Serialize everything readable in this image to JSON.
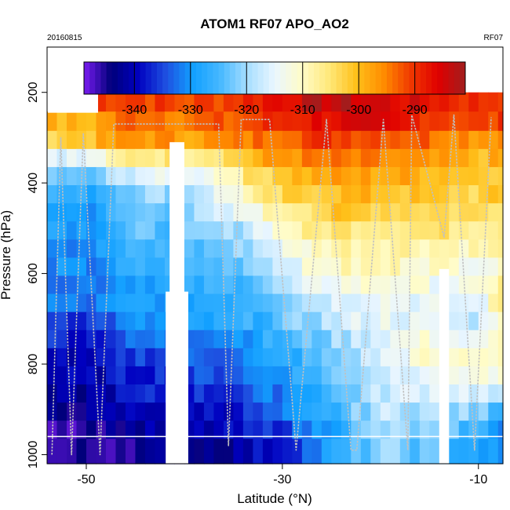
{
  "chart_data": {
    "type": "heatmap",
    "title": "ATOM1 RF07 APO_AO2",
    "subtitle_left": "20160815",
    "subtitle_right": "RF07",
    "xlabel": "Latitude (°N)",
    "ylabel": "Pressure (hPa)",
    "xlim": [
      -54,
      -7.5
    ],
    "ylim": [
      1020,
      100
    ],
    "x_ticks": [
      -50,
      -30,
      -10
    ],
    "x_tick_labels": [
      "-50",
      "-30",
      "-10"
    ],
    "y_ticks": [
      200,
      400,
      600,
      800,
      1000
    ],
    "y_tick_labels": [
      "200",
      "400",
      "600",
      "800",
      "1000"
    ],
    "y_scale": "linear, reversed",
    "colorbar": {
      "range": [
        -349,
        -281
      ],
      "ticks": [
        -340,
        -330,
        -320,
        -310,
        -300,
        -290
      ],
      "tick_labels": [
        "-340",
        "-330",
        "-320",
        "-310",
        "-300",
        "-290"
      ],
      "placement": "top, inside plot",
      "colors": [
        "#7a1cf0",
        "#00007a",
        "#0000c0",
        "#1e4fe0",
        "#12a0ff",
        "#46b8ff",
        "#a7deff",
        "#eaf6ff",
        "#fffcc8",
        "#ffe87a",
        "#ffc01a",
        "#ff8c00",
        "#f03800",
        "#e00000",
        "#a01e1e"
      ]
    },
    "pressure_levels": [
      220,
      265,
      305,
      345,
      385,
      425,
      465,
      505,
      545,
      585,
      625,
      665,
      705,
      745,
      785,
      825,
      865,
      905,
      945,
      985
    ],
    "latitude_knots": [
      -54,
      -50,
      -45,
      -40,
      -35,
      -30,
      -25,
      -20,
      -15,
      -10,
      -7.5
    ],
    "value_grid": [
      [
        null,
        null,
        -290,
        -292,
        -290,
        -286,
        -283,
        -285,
        -287,
        -290,
        -289
      ],
      [
        -300,
        -300,
        -292,
        -294,
        -293,
        -289,
        -286,
        -287,
        -289,
        -292,
        -291
      ],
      [
        -302,
        -301,
        -296,
        -297,
        -296,
        -292,
        -290,
        -291,
        -293,
        -296,
        -295
      ],
      [
        -314,
        -316,
        -305,
        -306,
        -303,
        -296,
        -295,
        -296,
        -298,
        -300,
        -299
      ],
      [
        -322,
        -325,
        -315,
        -316,
        -308,
        -300,
        -298,
        -298,
        -299,
        -301,
        -300
      ],
      [
        -326,
        -328,
        -320,
        -320,
        -312,
        -304,
        -300,
        -300,
        -302,
        -303,
        -302
      ],
      [
        -328,
        -330,
        -323,
        -322,
        -316,
        -307,
        -302,
        -302,
        -303,
        -304,
        -303
      ],
      [
        -327,
        -329,
        -324,
        -324,
        -320,
        -310,
        -305,
        -305,
        -305,
        -306,
        -305
      ],
      [
        -329,
        -331,
        -326,
        -325,
        -322,
        -314,
        -308,
        -307,
        -308,
        -309,
        -308
      ],
      [
        -330,
        -332,
        -327,
        -326,
        -323,
        -316,
        -310,
        -309,
        -310,
        -312,
        -312
      ],
      [
        -330,
        -332,
        -328,
        -328,
        -325,
        -320,
        -313,
        -311,
        -313,
        -314,
        -305
      ],
      [
        -331,
        -333,
        -329,
        -328,
        -326,
        -321,
        -316,
        -313,
        -315,
        -316,
        -306
      ],
      [
        -334,
        -336,
        -331,
        -330,
        -328,
        -324,
        -318,
        -314,
        -316,
        -318,
        -308
      ],
      [
        -336,
        -338,
        -333,
        -331,
        -330,
        -326,
        -321,
        -315,
        -312,
        -316,
        -310
      ],
      [
        -338,
        -342,
        -335,
        -334,
        -332,
        -328,
        -323,
        -316,
        -311,
        -310,
        -309
      ],
      [
        -340,
        -341,
        -337,
        -336,
        -333,
        -329,
        -323,
        -317,
        -313,
        -312,
        -313
      ],
      [
        -343,
        -342,
        -338,
        -337,
        -336,
        -331,
        -325,
        -318,
        -315,
        -316,
        -320
      ],
      [
        -344,
        -343,
        -340,
        -339,
        -338,
        -333,
        -327,
        -318,
        -319,
        -322,
        -325
      ],
      [
        -346,
        -345,
        -342,
        -341,
        -340,
        -335,
        -328,
        -320,
        -322,
        -326,
        -330
      ],
      [
        -347,
        -346,
        -344,
        -343,
        -342,
        -337,
        -329,
        -321,
        -324,
        -328,
        -332
      ]
    ],
    "gaps_latitude": [
      [
        -41.5,
        -40
      ],
      [
        -41.9,
        -39.6
      ],
      [
        -14,
        -13
      ]
    ],
    "flight_track_color": "#c0c0c0",
    "grid": false
  }
}
